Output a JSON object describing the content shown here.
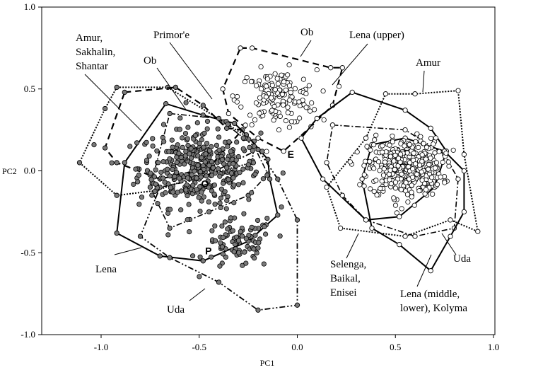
{
  "chart_data": {
    "type": "scatter",
    "title": "",
    "xlabel": "PC1",
    "ylabel": "PC2",
    "xlim": [
      -1.2,
      1.0
    ],
    "ylim": [
      -1.0,
      1.0
    ],
    "x_ticks": [
      "-1.0",
      "-0.5",
      "0.0",
      "0.5",
      "1.0"
    ],
    "y_ticks": [
      "1.0",
      "0.5",
      "0.0",
      "-0.5",
      "-1.0"
    ],
    "grid": false,
    "groups": [
      {
        "label": "Amur, Sakhalin, Shantar",
        "marker": "filled",
        "hull_style": "dotted",
        "hull": [
          [
            -0.92,
            0.51
          ],
          [
            -0.66,
            0.51
          ],
          [
            -0.35,
            0.28
          ],
          [
            -0.22,
            0.18
          ],
          [
            -0.23,
            0.05
          ],
          [
            -0.55,
            -0.05
          ],
          [
            -0.72,
            -0.12
          ],
          [
            -0.92,
            -0.15
          ],
          [
            -1.11,
            0.05
          ],
          [
            -0.98,
            0.38
          ]
        ]
      },
      {
        "label": "Ob",
        "marker": "filled",
        "hull_style": "dashed",
        "hull": [
          [
            -0.88,
            0.48
          ],
          [
            -0.62,
            0.51
          ],
          [
            -0.48,
            0.4
          ],
          [
            -0.36,
            0.26
          ],
          [
            -0.28,
            0.25
          ],
          [
            -0.45,
            0.02
          ],
          [
            -0.7,
            -0.05
          ],
          [
            -0.92,
            0.05
          ],
          [
            -0.98,
            0.14
          ]
        ]
      },
      {
        "label": "Lena",
        "marker": "filled",
        "hull_style": "solid",
        "hull": [
          [
            -0.67,
            0.41
          ],
          [
            -0.48,
            0.34
          ],
          [
            -0.32,
            0.29
          ],
          [
            -0.26,
            0.22
          ],
          [
            -0.15,
            0.07
          ],
          [
            -0.14,
            -0.05
          ],
          [
            -0.1,
            -0.27
          ],
          [
            -0.25,
            -0.43
          ],
          [
            -0.48,
            -0.55
          ],
          [
            -0.7,
            -0.52
          ],
          [
            -0.92,
            -0.38
          ],
          [
            -0.88,
            0.05
          ]
        ]
      },
      {
        "label": "Primor'e",
        "marker": "filled",
        "hull_style": "dash-dot",
        "hull": [
          [
            -0.65,
            0.35
          ],
          [
            -0.4,
            0.32
          ],
          [
            -0.22,
            0.15
          ],
          [
            -0.15,
            -0.02
          ],
          [
            -0.25,
            -0.15
          ],
          [
            -0.45,
            -0.25
          ],
          [
            -0.65,
            -0.35
          ],
          [
            -0.75,
            -0.1
          ]
        ]
      },
      {
        "label": "Uda",
        "marker": "filled",
        "hull_style": "dash-dot-dot",
        "hull": [
          [
            -0.2,
            0.13
          ],
          [
            -0.1,
            -0.05
          ],
          [
            0.0,
            -0.3
          ],
          [
            0.0,
            -0.82
          ],
          [
            -0.2,
            -0.85
          ],
          [
            -0.4,
            -0.68
          ],
          [
            -0.65,
            -0.53
          ],
          [
            -0.8,
            -0.4
          ],
          [
            -0.7,
            -0.1
          ],
          [
            -0.5,
            -0.05
          ]
        ]
      },
      {
        "label": "Ob",
        "marker": "open",
        "hull_style": "dashed",
        "hull": [
          [
            -0.29,
            0.75
          ],
          [
            -0.23,
            0.75
          ],
          [
            0.17,
            0.63
          ],
          [
            0.23,
            0.63
          ],
          [
            0.18,
            0.4
          ],
          [
            0.07,
            0.27
          ],
          [
            -0.07,
            0.12
          ],
          [
            -0.2,
            0.2
          ],
          [
            -0.35,
            0.35
          ],
          [
            -0.38,
            0.5
          ]
        ]
      },
      {
        "label": "Lena (upper)",
        "marker": "open",
        "hull_style": "solid",
        "hull": [
          [
            0.28,
            0.48
          ],
          [
            0.55,
            0.37
          ],
          [
            0.68,
            0.26
          ],
          [
            0.76,
            0.12
          ],
          [
            0.7,
            -0.1
          ],
          [
            0.52,
            -0.28
          ],
          [
            0.35,
            -0.3
          ],
          [
            0.13,
            -0.05
          ],
          [
            0.02,
            0.2
          ],
          [
            0.1,
            0.32
          ]
        ]
      },
      {
        "label": "Amur",
        "marker": "open",
        "hull_style": "dotted",
        "hull": [
          [
            0.45,
            0.47
          ],
          [
            0.6,
            0.47
          ],
          [
            0.82,
            0.49
          ],
          [
            0.85,
            0.1
          ],
          [
            0.92,
            -0.37
          ],
          [
            0.78,
            -0.3
          ],
          [
            0.55,
            -0.4
          ],
          [
            0.22,
            -0.35
          ],
          [
            0.15,
            -0.1
          ],
          [
            0.35,
            0.2
          ]
        ]
      },
      {
        "label": "Selenga, Baikal, Enisei",
        "marker": "open",
        "hull_style": "dash-dot",
        "hull": [
          [
            0.18,
            0.28
          ],
          [
            0.55,
            0.25
          ],
          [
            0.75,
            0.1
          ],
          [
            0.82,
            -0.05
          ],
          [
            0.8,
            -0.35
          ],
          [
            0.6,
            -0.4
          ],
          [
            0.35,
            -0.3
          ],
          [
            0.23,
            -0.15
          ],
          [
            0.15,
            0.05
          ]
        ]
      },
      {
        "label": "Lena (middle, lower), Kolyma",
        "marker": "open",
        "hull_style": "solid",
        "hull": [
          [
            0.38,
            0.16
          ],
          [
            0.55,
            0.2
          ],
          [
            0.75,
            0.12
          ],
          [
            0.85,
            0.0
          ],
          [
            0.85,
            -0.25
          ],
          [
            0.78,
            -0.4
          ],
          [
            0.68,
            -0.61
          ],
          [
            0.52,
            -0.45
          ],
          [
            0.38,
            -0.35
          ],
          [
            0.33,
            -0.05
          ]
        ]
      }
    ],
    "centroid_labels": [
      {
        "text": "O",
        "x": -0.49,
        "y": -0.1
      },
      {
        "text": "E",
        "x": -0.05,
        "y": 0.08
      },
      {
        "text": "P",
        "x": -0.47,
        "y": -0.51
      }
    ],
    "annotations": [
      {
        "text": "Amur,",
        "for": "Amur, Sakhalin, Shantar"
      },
      {
        "text": "Sakhalin,",
        "for": "Amur, Sakhalin, Shantar"
      },
      {
        "text": "Shantar",
        "for": "Amur, Sakhalin, Shantar"
      },
      {
        "text": "Ob",
        "for": "Ob (filled)"
      },
      {
        "text": "Primor'e",
        "for": "Primor'e"
      },
      {
        "text": "Ob",
        "for": "Ob (open)"
      },
      {
        "text": "Lena (upper)",
        "for": "Lena (upper)"
      },
      {
        "text": "Amur",
        "for": "Amur"
      },
      {
        "text": "Lena",
        "for": "Lena"
      },
      {
        "text": "Uda",
        "for": "Uda (filled)"
      },
      {
        "text": "Selenga,",
        "for": "Selenga, Baikal, Enisei"
      },
      {
        "text": "Baikal,",
        "for": "Selenga, Baikal, Enisei"
      },
      {
        "text": "Enisei",
        "for": "Selenga, Baikal, Enisei"
      },
      {
        "text": "Uda",
        "for": "Uda (open)"
      },
      {
        "text": "Lena (middle,",
        "for": "Lena (middle, lower), Kolyma"
      },
      {
        "text": "lower), Kolyma",
        "for": "Lena (middle, lower), Kolyma"
      }
    ],
    "point_clouds": [
      {
        "marker": "filled",
        "center": [
          -0.5,
          0.02
        ],
        "spread": [
          0.28,
          0.22
        ],
        "count": 380
      },
      {
        "marker": "filled",
        "center": [
          -0.3,
          -0.45
        ],
        "spread": [
          0.16,
          0.14
        ],
        "count": 90
      },
      {
        "marker": "open",
        "center": [
          -0.1,
          0.45
        ],
        "spread": [
          0.18,
          0.15
        ],
        "count": 150
      },
      {
        "marker": "open",
        "center": [
          0.55,
          0.02
        ],
        "spread": [
          0.17,
          0.16
        ],
        "count": 420
      }
    ],
    "colors": {
      "filled_marker": "#7a7a7a",
      "open_marker": "#ffffff",
      "marker_edge": "#000000",
      "hull_line": "#000000"
    }
  }
}
